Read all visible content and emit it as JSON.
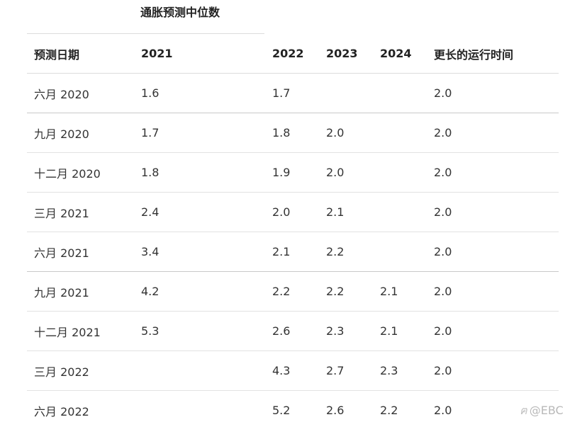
{
  "table": {
    "super_header": "通胀预测中位数",
    "columns": [
      "预测日期",
      "2021",
      "2022",
      "2023",
      "2024",
      "更长的运行时间"
    ],
    "rows": [
      [
        "六月 2020",
        "1.6",
        "1.7",
        "",
        "",
        "2.0"
      ],
      [
        "九月 2020",
        "1.7",
        "1.8",
        "2.0",
        "",
        "2.0"
      ],
      [
        "十二月 2020",
        "1.8",
        "1.9",
        "2.0",
        "",
        "2.0"
      ],
      [
        "三月 2021",
        "2.4",
        "2.0",
        "2.1",
        "",
        "2.0"
      ],
      [
        "六月 2021",
        "3.4",
        "2.1",
        "2.2",
        "",
        "2.0"
      ],
      [
        "九月 2021",
        "4.2",
        "2.2",
        "2.2",
        "2.1",
        "2.0"
      ],
      [
        "十二月 2021",
        "5.3",
        "2.6",
        "2.3",
        "2.1",
        "2.0"
      ],
      [
        "三月 2022",
        "",
        "4.3",
        "2.7",
        "2.3",
        "2.0"
      ],
      [
        "六月 2022",
        "",
        "5.2",
        "2.6",
        "2.2",
        "2.0"
      ]
    ]
  },
  "watermark": {
    "icon": "weibo-icon",
    "text": "@EBC"
  }
}
